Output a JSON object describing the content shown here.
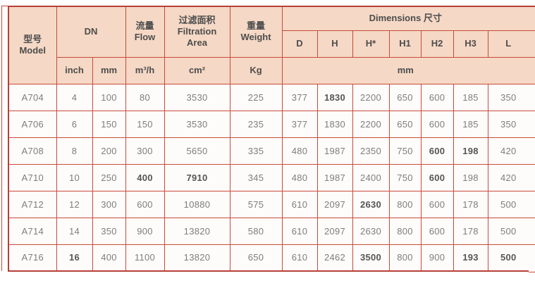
{
  "colors": {
    "page_bg": "#ffffff",
    "header_bg": "#f5d8c5",
    "row_bg": "#fefcfb",
    "border": "#c74a3b",
    "outer_border": "#b64036",
    "header_text": "#4d4d4d",
    "cell_text": "#7d7d7d",
    "bold_text": "#555555"
  },
  "table": {
    "header": {
      "model_lines": [
        "型号",
        "Model"
      ],
      "dn": "DN",
      "flow_lines": [
        "流量",
        "Flow"
      ],
      "filtration_lines": [
        "过滤面积",
        "Filtration",
        "Area"
      ],
      "weight_lines": [
        "重量",
        "Weight"
      ],
      "dimensions": "Dimensions 尺寸",
      "dim_cols": [
        "D",
        "H",
        "H*",
        "H1",
        "H2",
        "H3",
        "L"
      ],
      "units": {
        "inch": "inch",
        "mm": "mm",
        "flow": "m³/h",
        "filtration": "cm²",
        "weight": "Kg",
        "dimensions": "mm"
      }
    },
    "rows": [
      [
        "A704",
        "4",
        "100",
        "80",
        "3530",
        "225",
        "377",
        "1830",
        "2200",
        "650",
        "600",
        "185",
        "350"
      ],
      [
        "A706",
        "6",
        "150",
        "150",
        "3530",
        "235",
        "377",
        "1830",
        "2200",
        "650",
        "600",
        "185",
        "350"
      ],
      [
        "A708",
        "8",
        "200",
        "300",
        "5650",
        "335",
        "480",
        "1987",
        "2350",
        "750",
        "600",
        "198",
        "420"
      ],
      [
        "A710",
        "10",
        "250",
        "400",
        "7910",
        "345",
        "480",
        "1987",
        "2400",
        "750",
        "600",
        "198",
        "420"
      ],
      [
        "A712",
        "12",
        "300",
        "600",
        "10880",
        "575",
        "610",
        "2097",
        "2630",
        "800",
        "600",
        "178",
        "500"
      ],
      [
        "A714",
        "14",
        "350",
        "900",
        "13820",
        "580",
        "610",
        "2097",
        "2630",
        "800",
        "600",
        "178",
        "500"
      ],
      [
        "A716",
        "16",
        "400",
        "1100",
        "13820",
        "650",
        "610",
        "2462",
        "3500",
        "800",
        "900",
        "193",
        "500"
      ]
    ],
    "bold_cells": [
      [
        0,
        7
      ],
      [
        2,
        10
      ],
      [
        2,
        11
      ],
      [
        3,
        3
      ],
      [
        3,
        4
      ],
      [
        3,
        10
      ],
      [
        4,
        8
      ],
      [
        6,
        1
      ],
      [
        6,
        8
      ],
      [
        6,
        11
      ],
      [
        6,
        12
      ]
    ]
  }
}
